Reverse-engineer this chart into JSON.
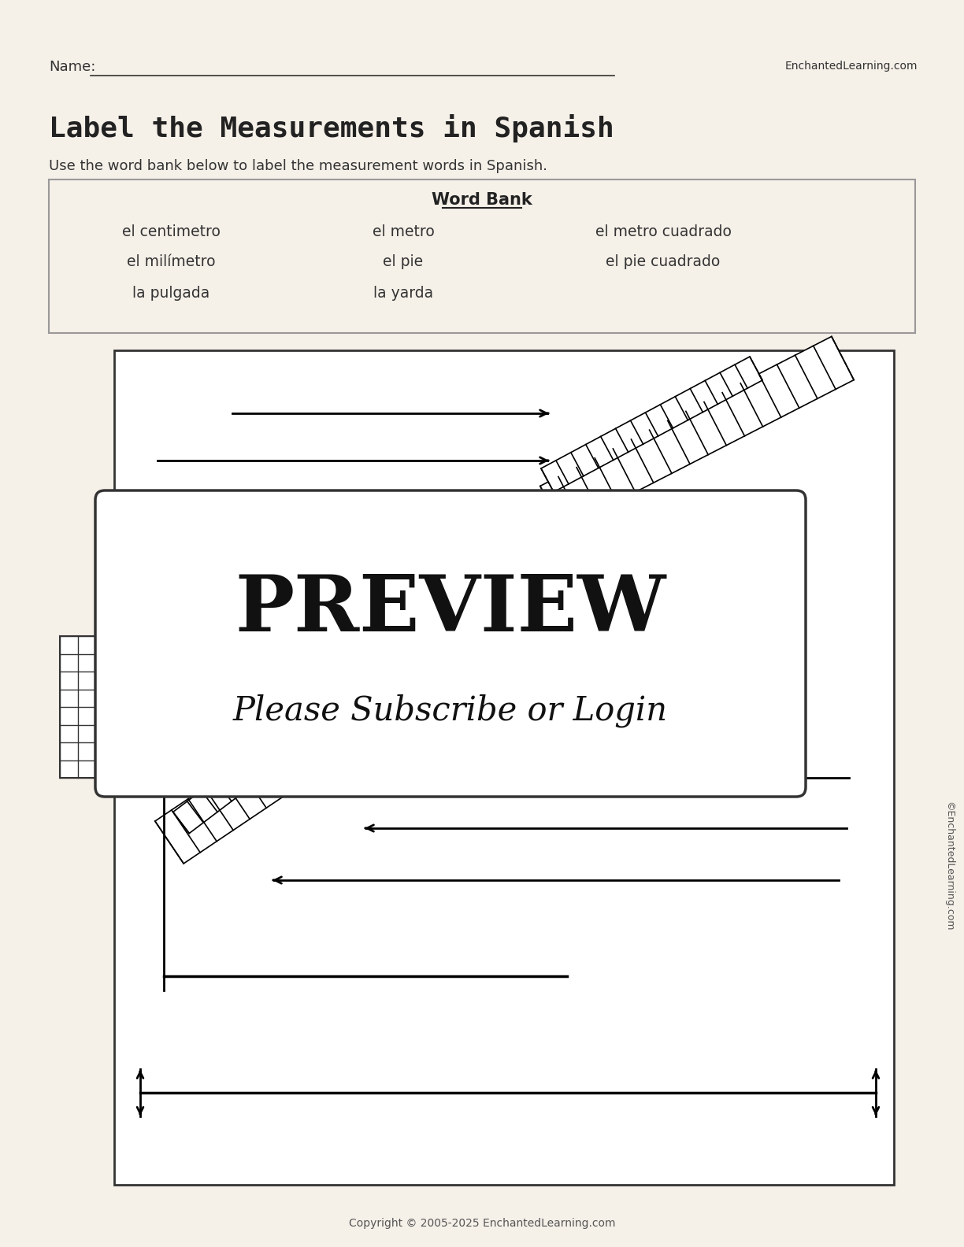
{
  "bg_color": "#f5f0e8",
  "page_width": 12.24,
  "page_height": 15.84,
  "title": "Label the Measurements in Spanish",
  "subtitle": "Use the word bank below to label the measurement words in Spanish.",
  "name_label": "Name:",
  "enchanted_url": "EnchantedLearning.com",
  "copyright": "Copyright © 2005-2025 EnchantedLearning.com",
  "word_bank_title": "Word Bank",
  "word_bank_col1": [
    "el centimetro",
    "el milímetro",
    "la pulgada"
  ],
  "word_bank_col2": [
    "el metro",
    "el pie",
    "la yarda"
  ],
  "word_bank_col3": [
    "el metro cuadrado",
    "el pie cuadrado"
  ],
  "preview_text": "PREVIEW",
  "preview_subtext": "Please Subscribe or Login",
  "watermark": "©EnchantedLearning.com"
}
